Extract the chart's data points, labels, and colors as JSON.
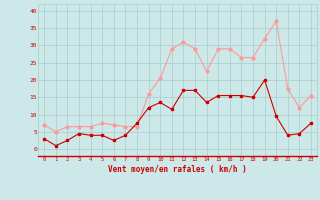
{
  "x": [
    0,
    1,
    2,
    3,
    4,
    5,
    6,
    7,
    8,
    9,
    10,
    11,
    12,
    13,
    14,
    15,
    16,
    17,
    18,
    19,
    20,
    21,
    22,
    23
  ],
  "wind_mean": [
    3,
    1,
    2.5,
    4.5,
    4,
    4,
    2.5,
    4,
    7.5,
    12,
    13.5,
    11.5,
    17,
    17,
    13.5,
    15.5,
    15.5,
    15.5,
    15,
    20,
    9.5,
    4,
    4.5,
    7.5
  ],
  "wind_gust": [
    7,
    5,
    6.5,
    6.5,
    6.5,
    7.5,
    7,
    6.5,
    6.5,
    16,
    20.5,
    29,
    31,
    29,
    22.5,
    29,
    29,
    26.5,
    26.5,
    32,
    37,
    17.5,
    12,
    15.5
  ],
  "mean_color": "#cc0000",
  "gust_color": "#ff9999",
  "bg_color": "#cce8e8",
  "grid_color": "#aacccc",
  "axis_color": "#cc0000",
  "red_line_color": "#cc0000",
  "xlabel": "Vent moyen/en rafales ( km/h )",
  "ylim": [
    -2,
    42
  ],
  "xlim": [
    -0.5,
    23.5
  ],
  "yticks": [
    0,
    5,
    10,
    15,
    20,
    25,
    30,
    35,
    40
  ],
  "xticks": [
    0,
    1,
    2,
    3,
    4,
    5,
    6,
    7,
    8,
    9,
    10,
    11,
    12,
    13,
    14,
    15,
    16,
    17,
    18,
    19,
    20,
    21,
    22,
    23
  ]
}
